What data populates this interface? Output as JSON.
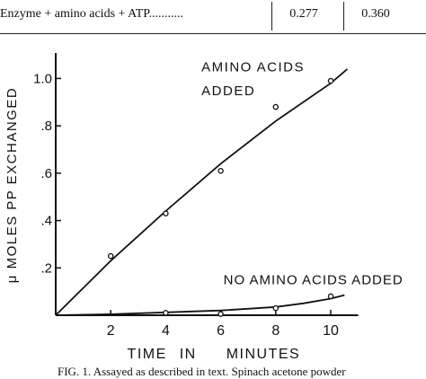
{
  "table": {
    "row_label": "Enzyme + amino acids + ATP",
    "row_leader": "...........",
    "value_1": "0.277",
    "value_2": "0.360"
  },
  "chart_data": {
    "type": "scatter",
    "title": "",
    "xlabel": "TIME IN MINUTES",
    "ylabel": "μ MOLES PP EXCHANGED",
    "xlim": [
      0,
      11
    ],
    "ylim": [
      0,
      1.1
    ],
    "x_ticks": [
      2,
      4,
      6,
      8,
      10
    ],
    "x_tick_labels": [
      "2",
      "4",
      "6",
      "8",
      "10"
    ],
    "y_ticks": [
      0.2,
      0.4,
      0.6,
      0.8,
      1.0
    ],
    "y_tick_labels": [
      ".2",
      ".4",
      ".6",
      ".8",
      "1.0"
    ],
    "grid": false,
    "series": [
      {
        "name": "AMINO ACIDS ADDED",
        "x": [
          2,
          4,
          6,
          8,
          10
        ],
        "y": [
          0.25,
          0.43,
          0.61,
          0.88,
          0.99
        ],
        "curve_x": [
          0,
          2,
          4,
          6,
          8,
          10,
          10.6
        ],
        "curve_y": [
          0,
          0.23,
          0.44,
          0.64,
          0.82,
          0.98,
          1.04
        ]
      },
      {
        "name": "NO AMINO ACIDS ADDED",
        "x": [
          4,
          6,
          8,
          10
        ],
        "y": [
          0.01,
          0.005,
          0.03,
          0.08
        ],
        "curve_x": [
          0,
          2,
          4,
          6,
          8,
          9,
          10,
          10.5
        ],
        "curve_y": [
          0,
          0.004,
          0.012,
          0.02,
          0.035,
          0.05,
          0.07,
          0.085
        ]
      }
    ],
    "annotations": [
      {
        "label_line_1": "AMINO ACIDS",
        "label_line_2": "ADDED"
      },
      {
        "label_line_1": "NO AMINO ACIDS ADDED"
      }
    ]
  },
  "caption": "FIG. 1. Assayed as described in text. Spinach acetone powder"
}
